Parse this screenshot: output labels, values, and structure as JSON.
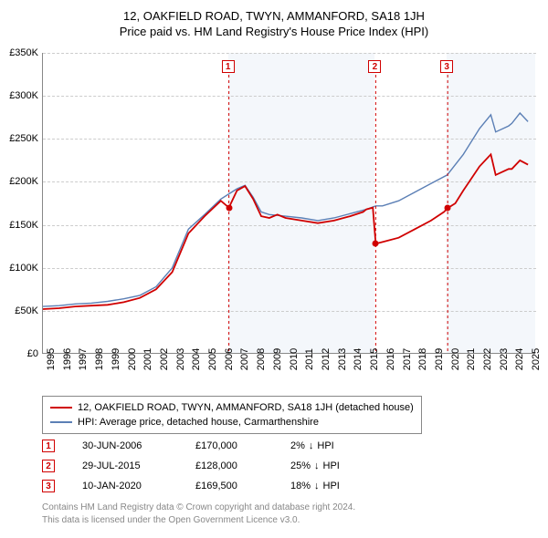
{
  "title": {
    "line1": "12, OAKFIELD ROAD, TWYN, AMMANFORD, SA18 1JH",
    "line2": "Price paid vs. HM Land Registry's House Price Index (HPI)",
    "fontsize": 13
  },
  "chart": {
    "type": "line",
    "xlim": [
      1995,
      2025.5
    ],
    "ylim": [
      0,
      350000
    ],
    "ytick_step": 50000,
    "yticks": [
      "£0",
      "£50K",
      "£100K",
      "£150K",
      "£200K",
      "£250K",
      "£300K",
      "£350K"
    ],
    "xticks": [
      1995,
      1996,
      1997,
      1998,
      1999,
      2000,
      2001,
      2002,
      2003,
      2004,
      2005,
      2006,
      2007,
      2008,
      2009,
      2010,
      2011,
      2012,
      2013,
      2014,
      2015,
      2016,
      2017,
      2018,
      2019,
      2020,
      2021,
      2022,
      2023,
      2024,
      2025
    ],
    "background_color": "#ffffff",
    "grid_color": "#cccccc",
    "bands": [
      {
        "from": 2006.5,
        "to": 2015.58,
        "color": "#f0f4fa"
      },
      {
        "from": 2020.03,
        "to": 2025.5,
        "color": "#f0f4fa"
      }
    ],
    "series": [
      {
        "name": "property",
        "label": "12, OAKFIELD ROAD, TWYN, AMMANFORD, SA18 1JH (detached house)",
        "color": "#d00000",
        "width": 1.8,
        "data": [
          [
            1995,
            52000
          ],
          [
            1996,
            53000
          ],
          [
            1997,
            55000
          ],
          [
            1998,
            56000
          ],
          [
            1999,
            57000
          ],
          [
            2000,
            60000
          ],
          [
            2001,
            65000
          ],
          [
            2002,
            75000
          ],
          [
            2003,
            95000
          ],
          [
            2004,
            140000
          ],
          [
            2005,
            160000
          ],
          [
            2006,
            178000
          ],
          [
            2006.5,
            170000
          ],
          [
            2007,
            190000
          ],
          [
            2007.5,
            195000
          ],
          [
            2008,
            180000
          ],
          [
            2008.5,
            160000
          ],
          [
            2009,
            158000
          ],
          [
            2009.5,
            162000
          ],
          [
            2010,
            158000
          ],
          [
            2011,
            155000
          ],
          [
            2012,
            152000
          ],
          [
            2013,
            155000
          ],
          [
            2014,
            160000
          ],
          [
            2014.8,
            165000
          ],
          [
            2015,
            168000
          ],
          [
            2015.4,
            170000
          ],
          [
            2015.58,
            128000
          ],
          [
            2016,
            130000
          ],
          [
            2017,
            135000
          ],
          [
            2018,
            145000
          ],
          [
            2019,
            155000
          ],
          [
            2019.8,
            165000
          ],
          [
            2020.03,
            169500
          ],
          [
            2020.5,
            175000
          ],
          [
            2021,
            190000
          ],
          [
            2022,
            218000
          ],
          [
            2022.7,
            232000
          ],
          [
            2023,
            208000
          ],
          [
            2023.8,
            215000
          ],
          [
            2024,
            215000
          ],
          [
            2024.5,
            225000
          ],
          [
            2025,
            220000
          ]
        ]
      },
      {
        "name": "hpi",
        "label": "HPI: Average price, detached house, Carmarthenshire",
        "color": "#5b7fb5",
        "width": 1.4,
        "data": [
          [
            1995,
            55000
          ],
          [
            1996,
            56000
          ],
          [
            1997,
            58000
          ],
          [
            1998,
            59000
          ],
          [
            1999,
            61000
          ],
          [
            2000,
            64000
          ],
          [
            2001,
            68000
          ],
          [
            2002,
            78000
          ],
          [
            2003,
            100000
          ],
          [
            2004,
            145000
          ],
          [
            2005,
            162000
          ],
          [
            2006,
            180000
          ],
          [
            2007,
            192000
          ],
          [
            2007.5,
            196000
          ],
          [
            2008,
            182000
          ],
          [
            2008.5,
            165000
          ],
          [
            2009,
            162000
          ],
          [
            2010,
            160000
          ],
          [
            2011,
            158000
          ],
          [
            2012,
            155000
          ],
          [
            2013,
            158000
          ],
          [
            2014,
            163000
          ],
          [
            2015,
            168000
          ],
          [
            2015.58,
            172000
          ],
          [
            2016,
            172000
          ],
          [
            2017,
            178000
          ],
          [
            2018,
            188000
          ],
          [
            2019,
            198000
          ],
          [
            2020,
            208000
          ],
          [
            2021,
            232000
          ],
          [
            2022,
            262000
          ],
          [
            2022.7,
            278000
          ],
          [
            2023,
            258000
          ],
          [
            2023.8,
            265000
          ],
          [
            2024,
            268000
          ],
          [
            2024.5,
            280000
          ],
          [
            2025,
            270000
          ]
        ]
      }
    ],
    "sale_points": [
      {
        "id": "1",
        "x": 2006.5,
        "y": 170000,
        "color": "#d00000"
      },
      {
        "id": "2",
        "x": 2015.58,
        "y": 128000,
        "color": "#d00000"
      },
      {
        "id": "3",
        "x": 2020.03,
        "y": 169500,
        "color": "#d00000"
      }
    ],
    "marker_boxes": [
      {
        "id": "1",
        "x": 2006.5
      },
      {
        "id": "2",
        "x": 2015.58
      },
      {
        "id": "3",
        "x": 2020.03
      }
    ]
  },
  "legend": {
    "items": [
      {
        "color": "#d00000",
        "label": "12, OAKFIELD ROAD, TWYN, AMMANFORD, SA18 1JH (detached house)"
      },
      {
        "color": "#5b7fb5",
        "label": "HPI: Average price, detached house, Carmarthenshire"
      }
    ]
  },
  "transactions": [
    {
      "id": "1",
      "date": "30-JUN-2006",
      "price": "£170,000",
      "pct": "2%",
      "direction": "down",
      "suffix": "HPI"
    },
    {
      "id": "2",
      "date": "29-JUL-2015",
      "price": "£128,000",
      "pct": "25%",
      "direction": "down",
      "suffix": "HPI"
    },
    {
      "id": "3",
      "date": "10-JAN-2020",
      "price": "£169,500",
      "pct": "18%",
      "direction": "down",
      "suffix": "HPI"
    }
  ],
  "footer": {
    "line1": "Contains HM Land Registry data © Crown copyright and database right 2024.",
    "line2": "This data is licensed under the Open Government Licence v3.0."
  },
  "colors": {
    "marker_border": "#d00000",
    "footer_text": "#888888"
  }
}
